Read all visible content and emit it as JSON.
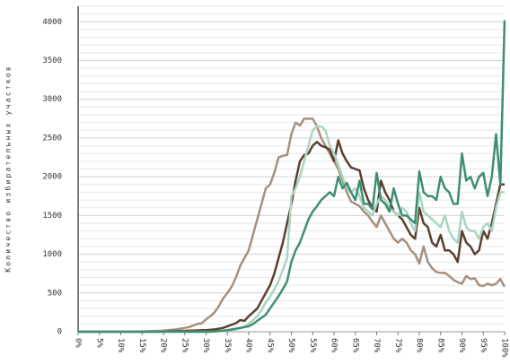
{
  "chart_data": {
    "type": "line",
    "y_label": "Количество избирательных участков",
    "x": [
      0,
      1,
      2,
      3,
      4,
      5,
      6,
      7,
      8,
      9,
      10,
      11,
      12,
      13,
      14,
      15,
      16,
      17,
      18,
      19,
      20,
      21,
      22,
      23,
      24,
      25,
      26,
      27,
      28,
      29,
      30,
      31,
      32,
      33,
      34,
      35,
      36,
      37,
      38,
      39,
      40,
      41,
      42,
      43,
      44,
      45,
      46,
      47,
      48,
      49,
      50,
      51,
      52,
      53,
      54,
      55,
      56,
      57,
      58,
      59,
      60,
      61,
      62,
      63,
      64,
      65,
      66,
      67,
      68,
      69,
      70,
      71,
      72,
      73,
      74,
      75,
      76,
      77,
      78,
      79,
      80,
      81,
      82,
      83,
      84,
      85,
      86,
      87,
      88,
      89,
      90,
      91,
      92,
      93,
      94,
      95,
      96,
      97,
      98,
      99,
      100
    ],
    "series": [
      {
        "color": "#a6907f",
        "values": [
          0,
          0,
          0,
          0,
          0,
          0,
          0,
          0,
          0,
          0,
          0,
          0,
          0,
          0,
          0,
          5,
          5,
          8,
          10,
          12,
          15,
          20,
          25,
          30,
          40,
          50,
          60,
          80,
          100,
          110,
          160,
          200,
          250,
          330,
          430,
          500,
          580,
          700,
          850,
          950,
          1050,
          1250,
          1450,
          1650,
          1850,
          1900,
          2050,
          2250,
          2270,
          2280,
          2550,
          2700,
          2660,
          2750,
          2750,
          2750,
          2650,
          2500,
          2400,
          2300,
          2200,
          2100,
          1950,
          1800,
          1680,
          1650,
          1620,
          1550,
          1500,
          1420,
          1350,
          1500,
          1400,
          1300,
          1200,
          1150,
          1200,
          1150,
          1050,
          1000,
          880,
          1100,
          900,
          820,
          770,
          760,
          760,
          720,
          670,
          640,
          620,
          720,
          680,
          690,
          600,
          590,
          620,
          600,
          620,
          680,
          580
        ]
      },
      {
        "color": "#5b4030",
        "values": [
          0,
          0,
          0,
          0,
          0,
          0,
          0,
          0,
          0,
          0,
          0,
          0,
          0,
          0,
          0,
          0,
          0,
          0,
          0,
          0,
          5,
          5,
          8,
          10,
          10,
          12,
          15,
          15,
          18,
          20,
          20,
          25,
          30,
          40,
          50,
          70,
          90,
          110,
          150,
          140,
          200,
          250,
          300,
          400,
          500,
          600,
          750,
          950,
          1150,
          1400,
          1650,
          1950,
          2200,
          2280,
          2300,
          2400,
          2450,
          2400,
          2380,
          2350,
          2200,
          2470,
          2300,
          2200,
          2120,
          2100,
          2080,
          1850,
          1700,
          1600,
          1550,
          1950,
          1800,
          1700,
          1550,
          1500,
          1450,
          1350,
          1250,
          1200,
          1600,
          1400,
          1350,
          1150,
          1100,
          1250,
          1050,
          1050,
          1000,
          900,
          1300,
          1150,
          1100,
          1000,
          1050,
          1300,
          1200,
          1400,
          1650,
          1900,
          1900
        ]
      },
      {
        "color": "#a9d6c1",
        "values": [
          0,
          0,
          0,
          0,
          0,
          0,
          0,
          0,
          0,
          0,
          0,
          0,
          0,
          0,
          0,
          0,
          0,
          0,
          0,
          0,
          0,
          0,
          0,
          0,
          0,
          0,
          0,
          0,
          0,
          0,
          0,
          0,
          0,
          5,
          10,
          15,
          20,
          30,
          40,
          60,
          100,
          150,
          200,
          280,
          380,
          450,
          550,
          650,
          800,
          950,
          1750,
          1850,
          2000,
          2200,
          2400,
          2600,
          2650,
          2650,
          2600,
          2400,
          2300,
          2150,
          2000,
          1850,
          1800,
          1850,
          1750,
          1600,
          1550,
          1500,
          1650,
          1750,
          1700,
          1600,
          1550,
          1500,
          1600,
          1550,
          1400,
          1300,
          1800,
          1550,
          1500,
          1450,
          1400,
          1350,
          1500,
          1300,
          1200,
          1150,
          1550,
          1350,
          1300,
          1300,
          1200,
          1350,
          1400,
          1300,
          1600,
          1800,
          1800
        ]
      },
      {
        "color": "#3e8f70",
        "values": [
          0,
          0,
          0,
          0,
          0,
          0,
          0,
          0,
          0,
          0,
          0,
          0,
          0,
          0,
          0,
          0,
          0,
          0,
          0,
          0,
          0,
          0,
          0,
          0,
          0,
          0,
          0,
          0,
          0,
          0,
          0,
          0,
          5,
          10,
          15,
          20,
          30,
          40,
          50,
          60,
          70,
          100,
          140,
          180,
          220,
          300,
          380,
          460,
          550,
          650,
          900,
          1050,
          1150,
          1300,
          1450,
          1550,
          1620,
          1700,
          1750,
          1800,
          1750,
          2000,
          1850,
          1920,
          1800,
          1700,
          1950,
          1650,
          1650,
          1580,
          2050,
          1700,
          1650,
          1550,
          1850,
          1650,
          1500,
          1500,
          1450,
          1400,
          2070,
          1800,
          1750,
          1750,
          1700,
          2000,
          1850,
          1800,
          1650,
          1650,
          2300,
          1950,
          2000,
          1850,
          2000,
          2050,
          1750,
          2000,
          2550,
          1900,
          4020
        ]
      }
    ],
    "xlim": [
      0,
      100
    ],
    "xticks": [
      {
        "value": 0,
        "label": "0%"
      },
      {
        "value": 5,
        "label": "5%"
      },
      {
        "value": 10,
        "label": "10%"
      },
      {
        "value": 15,
        "label": "15%"
      },
      {
        "value": 20,
        "label": "20%"
      },
      {
        "value": 25,
        "label": "25%"
      },
      {
        "value": 30,
        "label": "30%"
      },
      {
        "value": 35,
        "label": "35%"
      },
      {
        "value": 40,
        "label": "40%"
      },
      {
        "value": 45,
        "label": "45%"
      },
      {
        "value": 50,
        "label": "50%"
      },
      {
        "value": 55,
        "label": "55%"
      },
      {
        "value": 60,
        "label": "60%"
      },
      {
        "value": 65,
        "label": "65%"
      },
      {
        "value": 70,
        "label": "70%"
      },
      {
        "value": 75,
        "label": "75%"
      },
      {
        "value": 80,
        "label": "80%"
      },
      {
        "value": 85,
        "label": "85%"
      },
      {
        "value": 90,
        "label": "90%"
      },
      {
        "value": 95,
        "label": "95%"
      },
      {
        "value": 100,
        "label": "100%"
      }
    ],
    "ylim": [
      0,
      4200
    ],
    "yticks": [
      0,
      500,
      1000,
      1500,
      2000,
      2500,
      3000,
      3500,
      4000
    ],
    "grid": true,
    "minor_grid_step": 100
  }
}
